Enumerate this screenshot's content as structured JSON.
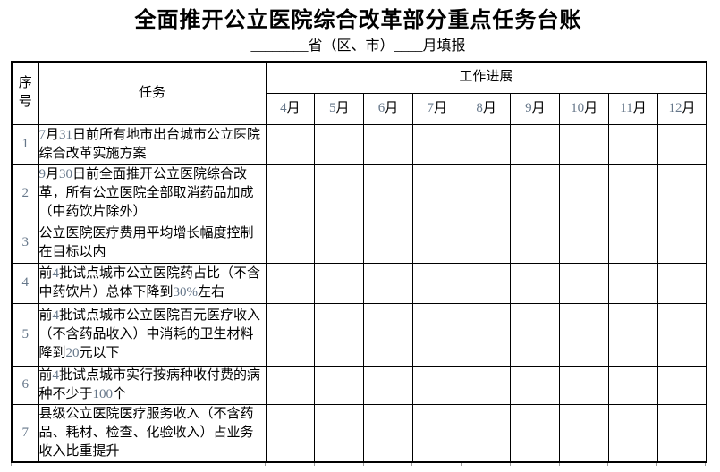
{
  "document": {
    "title": "全面推开公立医院综合改革部分重点任务台账",
    "subtitle": "________省（区、市）____月填报"
  },
  "table": {
    "header": {
      "index_label": "序号",
      "task_label": "任务",
      "progress_label": "工作进展"
    },
    "months": [
      "4月",
      "5月",
      "6月",
      "7月",
      "8月",
      "9月",
      "10月",
      "11月",
      "12月"
    ],
    "rows": [
      {
        "no": "1",
        "task": "7月31日前所有地市出台城市公立医院综合改革实施方案",
        "progress": [
          "",
          "",
          "",
          "",
          "",
          "",
          "",
          "",
          ""
        ]
      },
      {
        "no": "2",
        "task": "9月30日前全面推开公立医院综合改革，所有公立医院全部取消药品加成（中药饮片除外）",
        "progress": [
          "",
          "",
          "",
          "",
          "",
          "",
          "",
          "",
          ""
        ]
      },
      {
        "no": "3",
        "task": "公立医院医疗费用平均增长幅度控制在目标以内",
        "progress": [
          "",
          "",
          "",
          "",
          "",
          "",
          "",
          "",
          ""
        ]
      },
      {
        "no": "4",
        "task": "前4批试点城市公立医院药占比（不含中药饮片）总体下降到30%左右",
        "progress": [
          "",
          "",
          "",
          "",
          "",
          "",
          "",
          "",
          ""
        ]
      },
      {
        "no": "5",
        "task": "前4批试点城市公立医院百元医疗收入（不含药品收入）中消耗的卫生材料降到20元以下",
        "progress": [
          "",
          "",
          "",
          "",
          "",
          "",
          "",
          "",
          ""
        ]
      },
      {
        "no": "6",
        "task": "前4批试点城市实行按病种收付费的病种不少于100个",
        "progress": [
          "",
          "",
          "",
          "",
          "",
          "",
          "",
          "",
          ""
        ]
      },
      {
        "no": "7",
        "task": "县级公立医院医疗服务收入（不含药品、耗材、检查、化验收入）占业务收入比重提升",
        "progress": [
          "",
          "",
          "",
          "",
          "",
          "",
          "",
          "",
          ""
        ]
      }
    ]
  },
  "colors": {
    "background": "#ffffff",
    "border": "#000000",
    "text": "#000000",
    "digit_text": "#66778a"
  }
}
